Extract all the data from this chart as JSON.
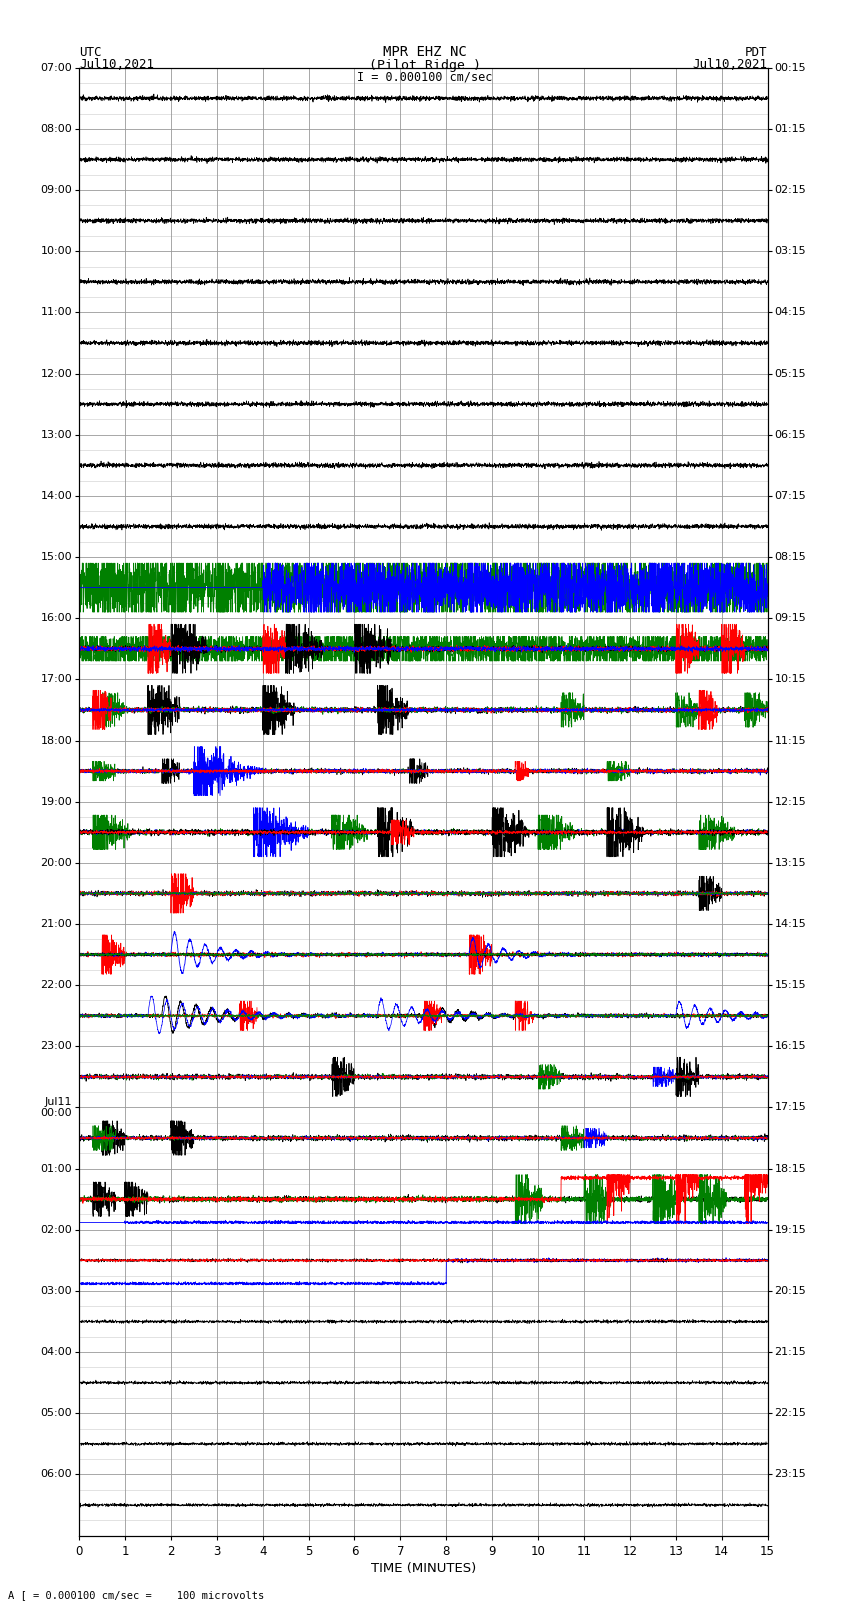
{
  "title_line1": "MPR EHZ NC",
  "title_line2": "(Pilot Ridge )",
  "scale_label": "I = 0.000100 cm/sec",
  "bottom_label": "A [ = 0.000100 cm/sec =    100 microvolts",
  "xlabel": "TIME (MINUTES)",
  "left_times_utc": [
    "07:00",
    "08:00",
    "09:00",
    "10:00",
    "11:00",
    "12:00",
    "13:00",
    "14:00",
    "15:00",
    "16:00",
    "17:00",
    "18:00",
    "19:00",
    "20:00",
    "21:00",
    "22:00",
    "23:00",
    "Jul11\n00:00",
    "01:00",
    "02:00",
    "03:00",
    "04:00",
    "05:00",
    "06:00"
  ],
  "right_times_pdt": [
    "00:15",
    "01:15",
    "02:15",
    "03:15",
    "04:15",
    "05:15",
    "06:15",
    "07:15",
    "08:15",
    "09:15",
    "10:15",
    "11:15",
    "12:15",
    "13:15",
    "14:15",
    "15:15",
    "16:15",
    "17:15",
    "18:15",
    "19:15",
    "20:15",
    "21:15",
    "22:15",
    "23:15"
  ],
  "num_rows": 24,
  "minutes_per_row": 15,
  "sub_lines_per_row": 4,
  "bg_color": "#ffffff",
  "grid_color": "#999999",
  "subgrid_color": "#cccccc"
}
